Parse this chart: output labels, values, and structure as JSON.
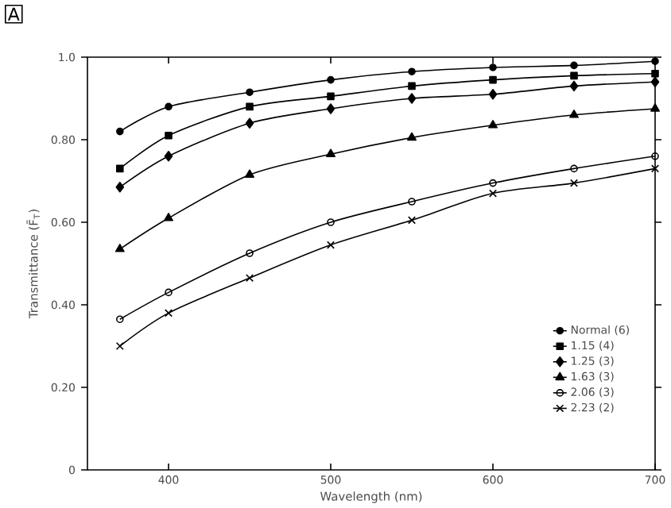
{
  "chart_data": {
    "type": "line",
    "xlabel": "Wavelength (nm)",
    "ylabel": "Transmittance (F̄$_{T}$)",
    "annotations": [
      "A"
    ],
    "x": [
      370,
      400,
      450,
      500,
      550,
      600,
      650,
      700
    ],
    "xlim": [
      350,
      700
    ],
    "xticks": [
      400,
      500,
      600,
      700
    ],
    "ylim": [
      0,
      1
    ],
    "yticks": [
      {
        "value": 0,
        "label": "0"
      },
      {
        "value": 0.2,
        "label": "0.20"
      },
      {
        "value": 0.4,
        "label": "0.40"
      },
      {
        "value": 0.6,
        "label": "0.60"
      },
      {
        "value": 0.8,
        "label": "0.80"
      },
      {
        "value": 1.0,
        "label": "1.0"
      }
    ],
    "grid": false,
    "legend": "bottom right",
    "series": [
      {
        "name": "Normal (6)",
        "color": "#000000",
        "marker": "circle",
        "values": [
          0.82,
          0.88,
          0.915,
          0.945,
          0.965,
          0.975,
          0.98,
          0.99
        ]
      },
      {
        "name": "1.15 (4)",
        "color": "#000000",
        "marker": "square",
        "values": [
          0.73,
          0.81,
          0.88,
          0.905,
          0.93,
          0.945,
          0.955,
          0.96
        ]
      },
      {
        "name": "1.25 (3)",
        "color": "#000000",
        "marker": "diamond",
        "values": [
          0.685,
          0.76,
          0.84,
          0.875,
          0.9,
          0.91,
          0.93,
          0.94
        ]
      },
      {
        "name": "1.63 (3)",
        "color": "#000000",
        "marker": "triangle",
        "values": [
          0.535,
          0.61,
          0.715,
          0.765,
          0.805,
          0.835,
          0.86,
          0.875
        ]
      },
      {
        "name": "2.06 (3)",
        "color": "#000000",
        "marker": "open circle",
        "values": [
          0.365,
          0.43,
          0.525,
          0.6,
          0.65,
          0.695,
          0.73,
          0.76
        ]
      },
      {
        "name": "2.23 (2)",
        "color": "#000000",
        "marker": "cross",
        "values": [
          0.3,
          0.38,
          0.465,
          0.545,
          0.605,
          0.67,
          0.695,
          0.73
        ]
      }
    ]
  }
}
